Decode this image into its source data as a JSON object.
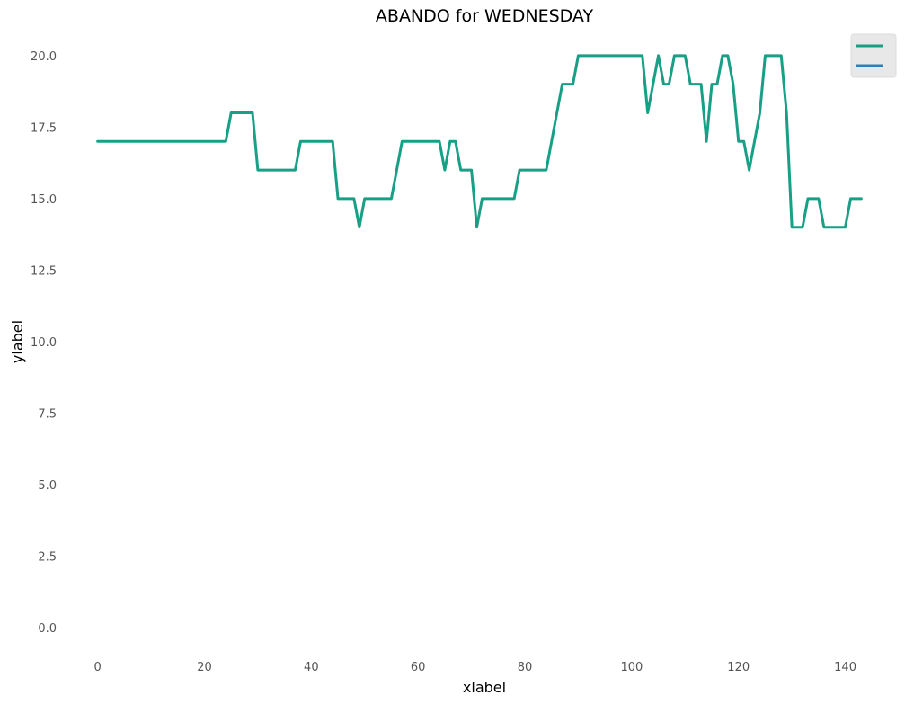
{
  "chart_data": {
    "type": "line",
    "title": "ABANDO for WEDNESDAY",
    "xlabel": "xlabel",
    "ylabel": "ylabel",
    "xlim": [
      -6.5,
      150
    ],
    "ylim": [
      -1.0,
      21.0
    ],
    "xticks": [
      0,
      20,
      40,
      60,
      80,
      100,
      120,
      140
    ],
    "xtick_labels": [
      "0",
      "20",
      "40",
      "60",
      "80",
      "100",
      "120",
      "140"
    ],
    "yticks": [
      0,
      2.5,
      5,
      7.5,
      10,
      12.5,
      15,
      17.5,
      20
    ],
    "ytick_labels": [
      "0.0",
      "2.5",
      "5.0",
      "7.5",
      "10.0",
      "12.5",
      "15.0",
      "17.5",
      "20.0"
    ],
    "grid": false,
    "legend": {
      "placement": "top-right",
      "entries": [
        "",
        ""
      ]
    },
    "series": [
      {
        "color": "#17a085",
        "x": [
          0,
          1,
          2,
          3,
          4,
          5,
          6,
          7,
          8,
          9,
          10,
          11,
          12,
          13,
          14,
          15,
          16,
          17,
          18,
          19,
          20,
          21,
          22,
          23,
          24,
          25,
          26,
          27,
          28,
          29,
          30,
          31,
          32,
          33,
          34,
          35,
          36,
          37,
          38,
          39,
          40,
          41,
          42,
          43,
          44,
          45,
          46,
          47,
          48,
          49,
          50,
          51,
          52,
          53,
          54,
          55,
          56,
          57,
          58,
          59,
          60,
          61,
          62,
          63,
          64,
          65,
          66,
          67,
          68,
          69,
          70,
          71,
          72,
          73,
          74,
          75,
          76,
          77,
          78,
          79,
          80,
          81,
          82,
          83,
          84,
          85,
          86,
          87,
          88,
          89,
          90,
          91,
          92,
          93,
          94,
          95,
          96,
          97,
          98,
          99,
          100,
          101,
          102,
          103,
          104,
          105,
          106,
          107,
          108,
          109,
          110,
          111,
          112,
          113,
          114,
          115,
          116,
          117,
          118,
          119,
          120,
          121,
          122,
          123,
          124,
          125,
          126,
          127,
          128,
          129,
          130,
          131,
          132,
          133,
          134,
          135,
          136,
          137,
          138,
          139,
          140,
          141,
          142,
          143
        ],
        "y": [
          17,
          17,
          17,
          17,
          17,
          17,
          17,
          17,
          17,
          17,
          17,
          17,
          17,
          17,
          17,
          17,
          17,
          17,
          17,
          17,
          17,
          17,
          17,
          17,
          17,
          18,
          18,
          18,
          18,
          18,
          16,
          16,
          16,
          16,
          16,
          16,
          16,
          16,
          17,
          17,
          17,
          17,
          17,
          17,
          17,
          15,
          15,
          15,
          15,
          14,
          15,
          15,
          15,
          15,
          15,
          15,
          16,
          17,
          17,
          17,
          17,
          17,
          17,
          17,
          17,
          16,
          17,
          17,
          16,
          16,
          16,
          14,
          15,
          15,
          15,
          15,
          15,
          15,
          15,
          16,
          16,
          16,
          16,
          16,
          16,
          17,
          18,
          19,
          19,
          19,
          20,
          20,
          20,
          20,
          20,
          20,
          20,
          20,
          20,
          20,
          20,
          20,
          20,
          18,
          19,
          20,
          19,
          19,
          20,
          20,
          20,
          19,
          19,
          19,
          17,
          19,
          19,
          20,
          20,
          19,
          17,
          17,
          16,
          17,
          18,
          20,
          20,
          20,
          20,
          18,
          14,
          14,
          14,
          15,
          15,
          15,
          14,
          14,
          14,
          14,
          14,
          15,
          15,
          15
        ]
      },
      {
        "color": "#2c7fb8",
        "x": [],
        "y": []
      }
    ]
  }
}
